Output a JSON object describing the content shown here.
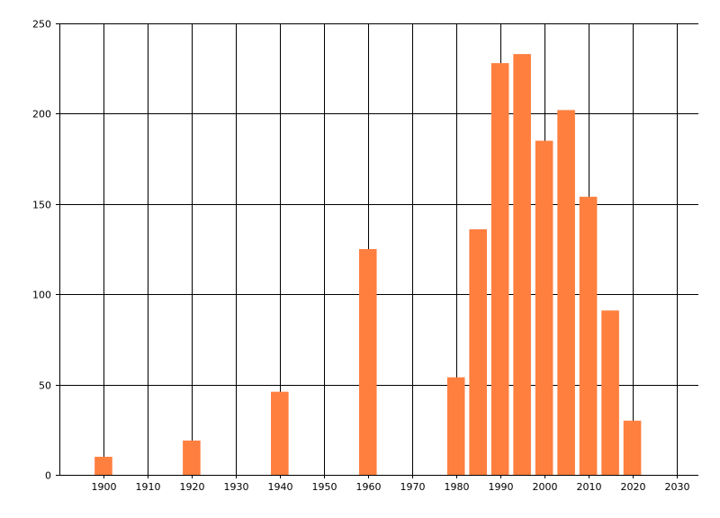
{
  "chart_data": {
    "type": "bar",
    "title": "",
    "xlabel": "",
    "ylabel": "",
    "x": [
      1900,
      1920,
      1940,
      1960,
      1980,
      1985,
      1990,
      1995,
      2000,
      2005,
      2010,
      2015,
      2020
    ],
    "values": [
      10,
      19,
      46,
      125,
      54,
      136,
      228,
      233,
      185,
      202,
      154,
      91,
      30
    ],
    "bar_width_years": 4,
    "xlim": [
      1890,
      2035
    ],
    "ylim": [
      0,
      250
    ],
    "x_ticks": [
      1900,
      1910,
      1920,
      1930,
      1940,
      1950,
      1960,
      1970,
      1980,
      1990,
      2000,
      2010,
      2020,
      2030
    ],
    "y_ticks": [
      0,
      50,
      100,
      150,
      200,
      250
    ],
    "grid": true,
    "legend": "none",
    "colors": {
      "bar": "#FF7F3F",
      "grid": "#000000",
      "background": "#FFFFFF"
    }
  }
}
